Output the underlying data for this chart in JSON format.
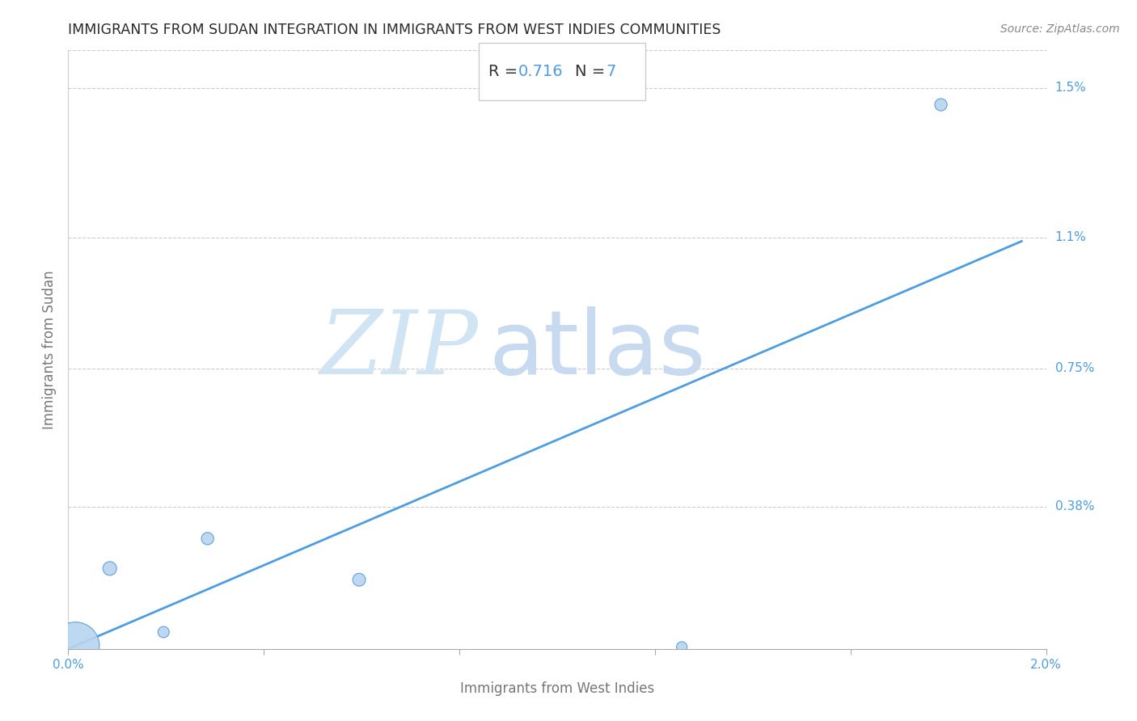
{
  "title": "IMMIGRANTS FROM SUDAN INTEGRATION IN IMMIGRANTS FROM WEST INDIES COMMUNITIES",
  "source": "Source: ZipAtlas.com",
  "xlabel": "Immigrants from West Indies",
  "ylabel": "Immigrants from Sudan",
  "R_text": "0.716",
  "N_text": "7",
  "watermark_zip": "ZIP",
  "watermark_atlas": "atlas",
  "xlim": [
    0.0,
    0.02
  ],
  "ylim": [
    0.0,
    0.016
  ],
  "xticks": [
    0.0,
    0.004,
    0.008,
    0.012,
    0.016,
    0.02
  ],
  "xtick_labels": [
    "0.0%",
    "",
    "",
    "",
    "",
    "2.0%"
  ],
  "ytick_labels": [
    "1.5%",
    "1.1%",
    "0.75%",
    "0.38%"
  ],
  "ytick_positions": [
    0.015,
    0.011,
    0.0075,
    0.0038
  ],
  "scatter_x": [
    0.00015,
    0.00085,
    0.00195,
    0.00285,
    0.00595,
    0.01255,
    0.01785
  ],
  "scatter_y": [
    8e-05,
    0.00215,
    0.00045,
    0.00295,
    0.00185,
    5e-05,
    0.01455
  ],
  "scatter_size": [
    1800,
    150,
    100,
    120,
    130,
    90,
    120
  ],
  "scatter_color": "#b8d4f0",
  "scatter_edge_color": "#5599dd",
  "line_color": "#4d9de0",
  "line_start_x": 0.0,
  "line_start_y": 0.0,
  "line_end_x": 0.0195,
  "line_end_y": 0.0109,
  "grid_color": "#cccccc",
  "title_color": "#2a2a2a",
  "title_fontsize": 12.5,
  "axis_label_color": "#777777",
  "axis_label_fontsize": 12,
  "ytick_color": "#4d9de0",
  "xtick_color": "#4d9de0",
  "source_color": "#888888",
  "source_fontsize": 10,
  "watermark_color_zip": "#d0e4f4",
  "watermark_color_atlas": "#c8daf0",
  "watermark_fontsize": 80,
  "annotation_R_label_color": "#333333",
  "annotation_R_value_color": "#4d9de0",
  "annotation_N_label_color": "#333333",
  "annotation_N_value_color": "#4d9de0",
  "annotation_fontsize": 14,
  "box_edge_color": "#cccccc"
}
